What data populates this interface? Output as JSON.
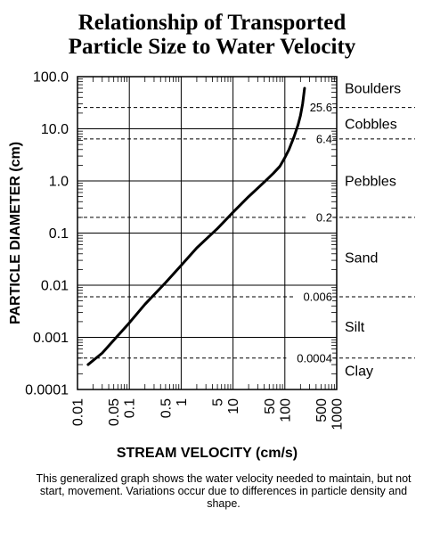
{
  "chart_data": {
    "type": "line",
    "title": [
      "Relationship of Transported",
      "Particle Size to Water Velocity"
    ],
    "xlabel": "STREAM VELOCITY (cm/s)",
    "ylabel": "PARTICLE DIAMETER (cm)",
    "xscale": "log",
    "yscale": "log",
    "xlim": [
      0.01,
      1000
    ],
    "ylim": [
      0.0001,
      100
    ],
    "grid": true,
    "x_ticks": [
      {
        "v": 0.01,
        "label": "0.01"
      },
      {
        "v": 0.05,
        "label": "0.05"
      },
      {
        "v": 0.1,
        "label": "0.1"
      },
      {
        "v": 0.5,
        "label": "0.5"
      },
      {
        "v": 1,
        "label": "1"
      },
      {
        "v": 5,
        "label": "5"
      },
      {
        "v": 10,
        "label": "10"
      },
      {
        "v": 50,
        "label": "50"
      },
      {
        "v": 100,
        "label": "100"
      },
      {
        "v": 500,
        "label": "500"
      },
      {
        "v": 1000,
        "label": "1000"
      }
    ],
    "y_ticks": [
      {
        "v": 100,
        "label": "100.0"
      },
      {
        "v": 10,
        "label": "10.0"
      },
      {
        "v": 1,
        "label": "1.0"
      },
      {
        "v": 0.1,
        "label": "0.1"
      },
      {
        "v": 0.01,
        "label": "0.01"
      },
      {
        "v": 0.001,
        "label": "0.001"
      },
      {
        "v": 0.0001,
        "label": "0.0001"
      }
    ],
    "boundaries": [
      {
        "v": 25.6,
        "label": "25.6"
      },
      {
        "v": 6.4,
        "label": "6.4"
      },
      {
        "v": 0.2,
        "label": "0.2"
      },
      {
        "v": 0.006,
        "label": "0.006"
      },
      {
        "v": 0.0004,
        "label": "0.0004"
      }
    ],
    "classes": [
      {
        "name": "Boulders",
        "v": 60
      },
      {
        "name": "Cobbles",
        "v": 12.5
      },
      {
        "name": "Pebbles",
        "v": 1.0
      },
      {
        "name": "Sand",
        "v": 0.034
      },
      {
        "name": "Silt",
        "v": 0.0016
      },
      {
        "name": "Clay",
        "v": 0.00023
      }
    ],
    "series": [
      {
        "x": [
          0.016,
          0.03,
          0.1,
          0.2,
          0.5,
          1,
          2,
          5,
          10,
          20,
          40,
          60,
          80,
          100,
          120,
          150,
          180,
          200,
          220,
          240
        ],
        "y": [
          0.0003,
          0.0005,
          0.0019,
          0.0043,
          0.0112,
          0.024,
          0.052,
          0.122,
          0.25,
          0.5,
          0.95,
          1.4,
          1.9,
          2.8,
          4.0,
          7.0,
          12.0,
          18.0,
          30.0,
          60.0
        ]
      }
    ],
    "caption": "This generalized graph shows the water velocity needed to maintain, but not start, movement. Variations occur due to differences in particle density and  shape."
  },
  "colors": {
    "ink": "#000000",
    "background": "#ffffff"
  }
}
